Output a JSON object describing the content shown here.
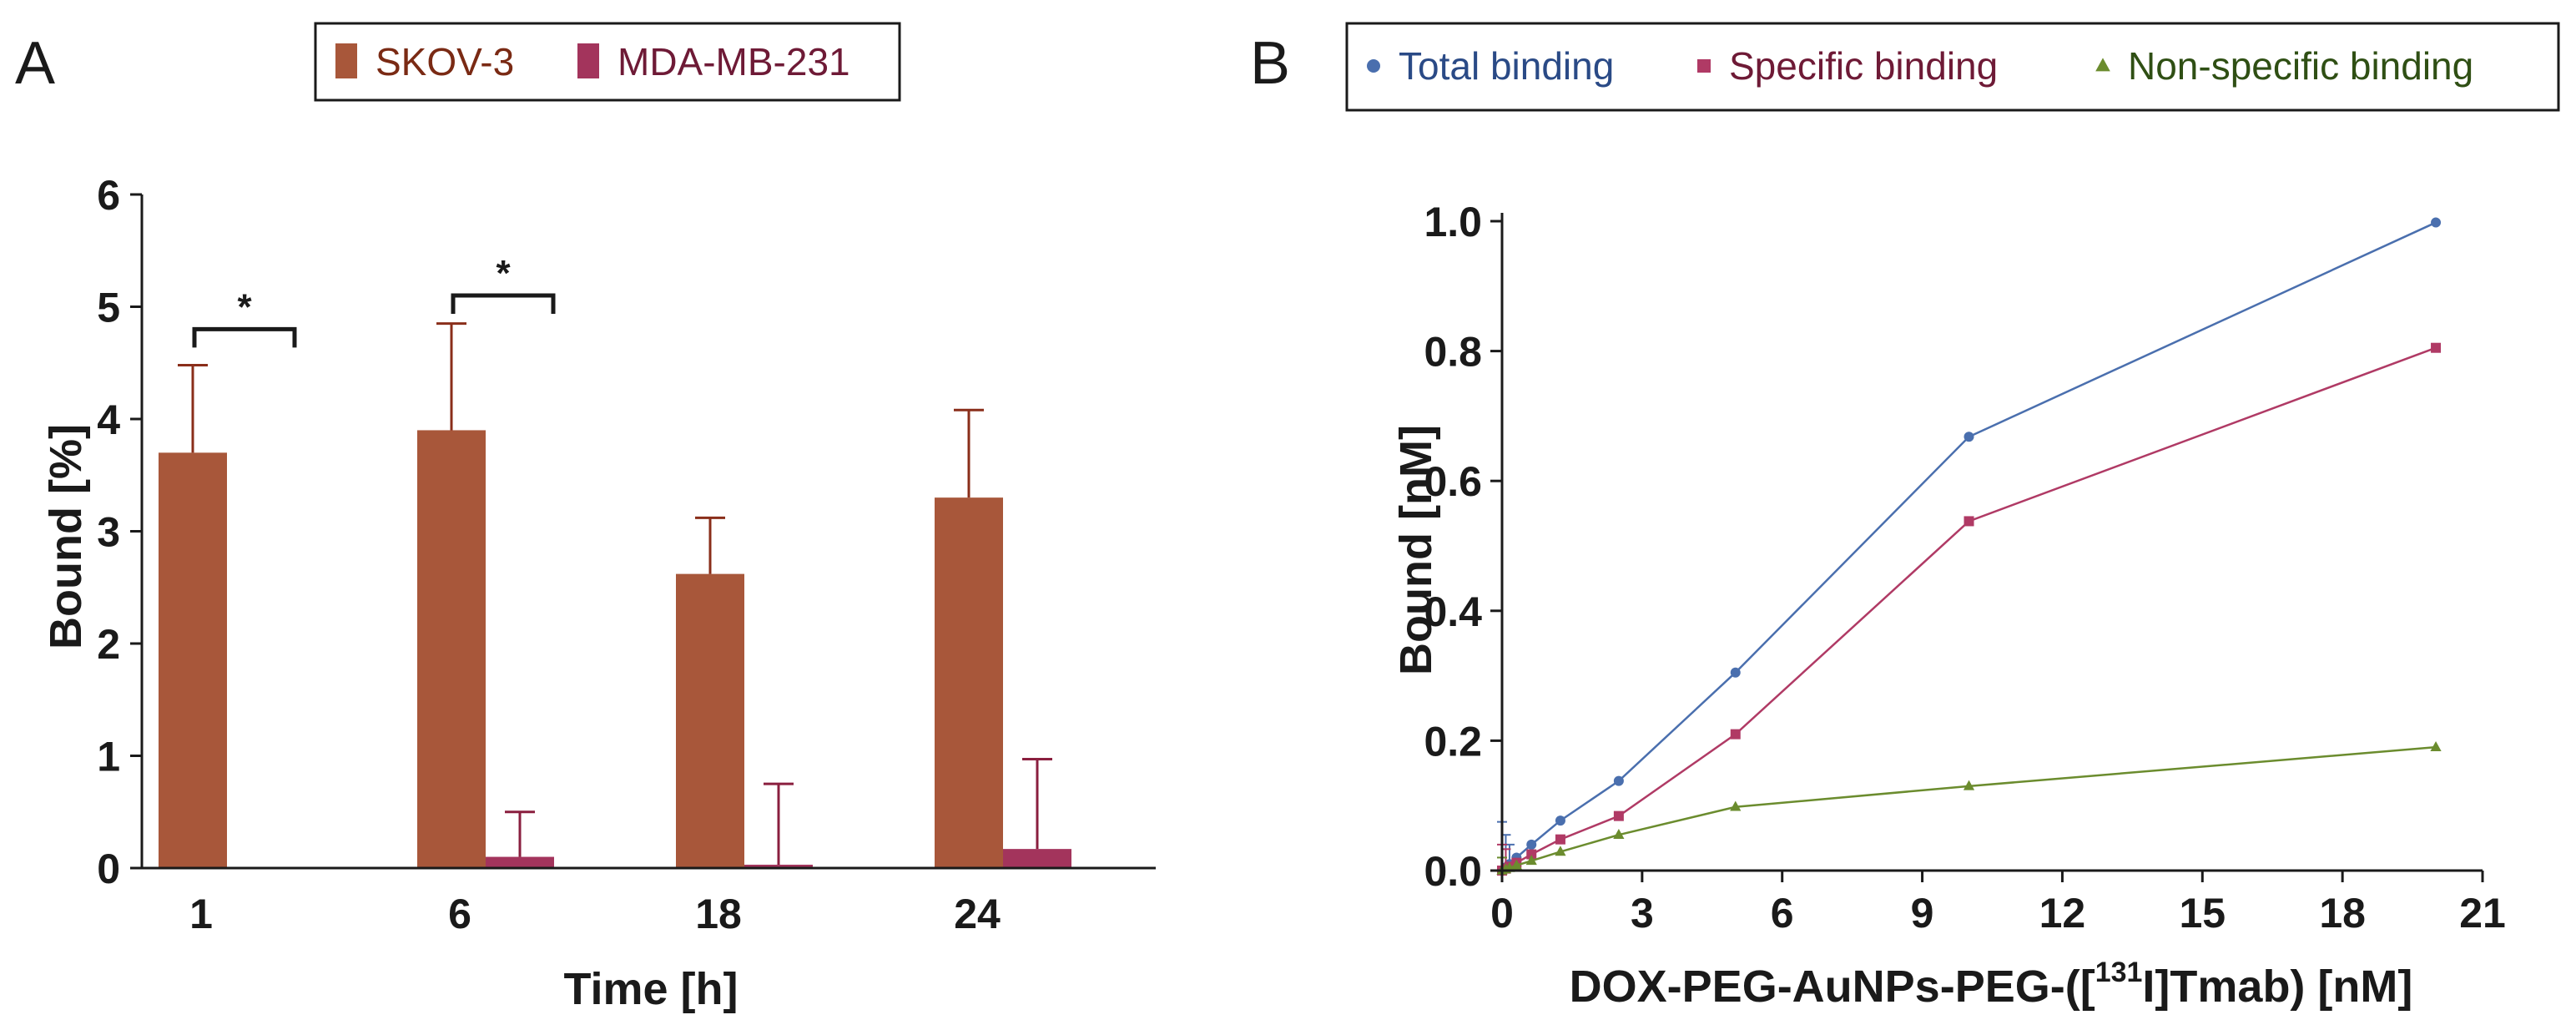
{
  "panel_a_label": "A",
  "panel_b_label": "B",
  "chart_data": [
    {
      "type": "bar",
      "panel": "A",
      "categories": [
        "1",
        "6",
        "18",
        "24"
      ],
      "xlabel": "Time [h]",
      "ylabel": "Bound [%]",
      "ylim": [
        0,
        6
      ],
      "yticks": [
        "0",
        "1",
        "2",
        "3",
        "4",
        "5",
        "6"
      ],
      "legend_position": "top-center",
      "series": [
        {
          "name": "SKOV-3",
          "color": "#a8573a",
          "values": [
            3.7,
            3.9,
            2.62,
            3.3
          ],
          "errors": [
            0.78,
            0.95,
            0.5,
            0.78
          ]
        },
        {
          "name": "MDA-MB-231",
          "color": "#a3345c",
          "values": [
            0.0,
            0.1,
            0.03,
            0.17
          ],
          "errors": [
            0.0,
            0.4,
            0.72,
            0.8
          ]
        }
      ],
      "annotations": [
        {
          "category": "1",
          "label": "*",
          "y": 4.8
        },
        {
          "category": "6",
          "label": "*",
          "y": 5.1
        }
      ]
    },
    {
      "type": "line",
      "panel": "B",
      "xlabel_prefix": "DOX-PEG-AuNPs-PEG-([",
      "xlabel_superscript": "131",
      "xlabel_suffix": "I]Tmab) [nM]",
      "ylabel": "Bound [nM]",
      "xlim": [
        0,
        21
      ],
      "ylim": [
        0,
        1.0
      ],
      "xticks": [
        "0",
        "3",
        "6",
        "9",
        "12",
        "15",
        "18",
        "21"
      ],
      "yticks": [
        "0.0",
        "0.2",
        "0.4",
        "0.6",
        "0.8",
        "1.0"
      ],
      "legend_position": "top",
      "series": [
        {
          "name": "Total binding",
          "color": "#4a6fae",
          "text_color": "#2a4a86",
          "marker": "circle",
          "x": [
            0,
            0.08,
            0.16,
            0.31,
            0.63,
            1.25,
            2.5,
            5,
            10,
            20
          ],
          "y": [
            0,
            0.005,
            0.01,
            0.02,
            0.04,
            0.077,
            0.138,
            0.305,
            0.668,
            0.998
          ],
          "errors": [
            0.075,
            0.05,
            0.03,
            0,
            0,
            0,
            0,
            0,
            0,
            0
          ]
        },
        {
          "name": "Specific binding",
          "color": "#b03a65",
          "text_color": "#6e1a36",
          "marker": "square",
          "x": [
            0,
            0.08,
            0.16,
            0.31,
            0.63,
            1.25,
            2.5,
            5,
            10,
            20
          ],
          "y": [
            0,
            0.003,
            0.006,
            0.012,
            0.025,
            0.048,
            0.084,
            0.21,
            0.538,
            0.805
          ],
          "errors": [
            0.04,
            0.03,
            0,
            0,
            0,
            0,
            0,
            0,
            0,
            0
          ]
        },
        {
          "name": "Non-specific binding",
          "color": "#6b8c2e",
          "text_color": "#2f4f14",
          "marker": "triangle",
          "x": [
            0,
            0.08,
            0.16,
            0.31,
            0.63,
            1.25,
            2.5,
            5,
            10,
            20
          ],
          "y": [
            0,
            0.002,
            0.004,
            0.008,
            0.015,
            0.029,
            0.055,
            0.098,
            0.13,
            0.19
          ],
          "errors": [
            0.02,
            0,
            0,
            0,
            0,
            0,
            0,
            0,
            0,
            0
          ]
        }
      ]
    }
  ]
}
